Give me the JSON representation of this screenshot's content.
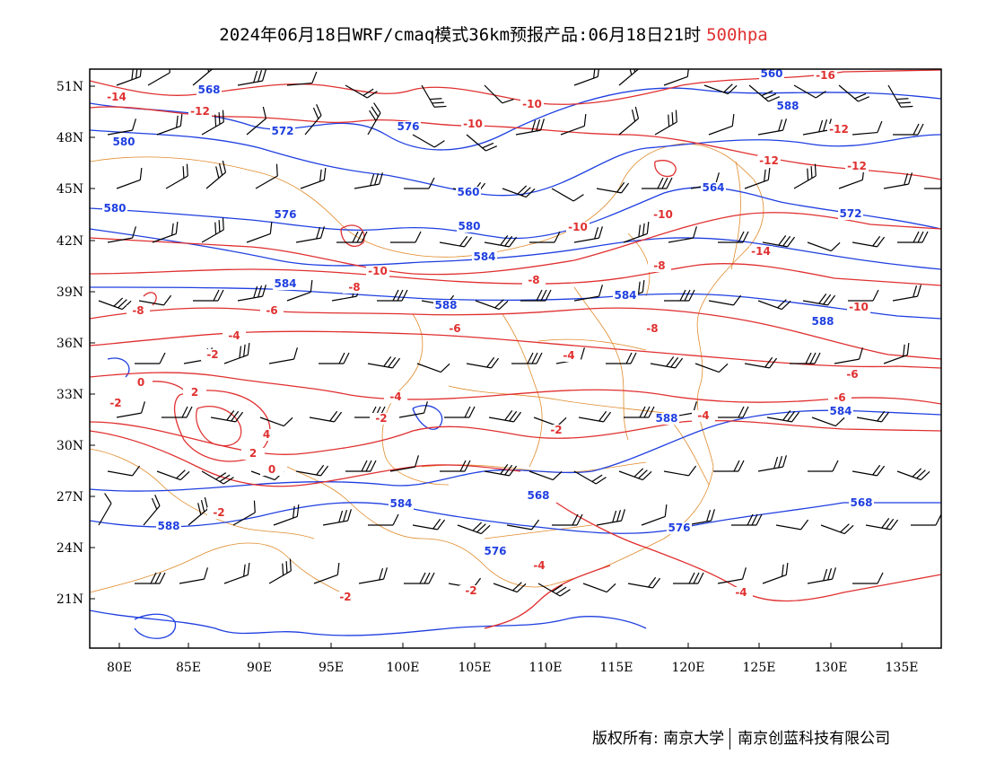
{
  "title": {
    "main": "2024年06月18日WRF/cmaq模式36km预报产品:06月18日21时",
    "level": "500hpa"
  },
  "footer": {
    "copyright": "版权所有: 南京大学",
    "company": "南京创蓝科技有限公司"
  },
  "colors": {
    "geopotential_contour": "#1f3fe0",
    "temperature_contour": "#e03030",
    "boundaries": "#e08a2a",
    "wind_barbs": "#000000"
  },
  "axes": {
    "lon_labels": [
      "80E",
      "85E",
      "90E",
      "95E",
      "100E",
      "105E",
      "110E",
      "115E",
      "120E",
      "125E",
      "130E",
      "135E"
    ],
    "lat_labels": [
      "51N",
      "48N",
      "45N",
      "42N",
      "39N",
      "36N",
      "33N",
      "30N",
      "27N",
      "24N",
      "21N"
    ]
  },
  "geopotential_labels": [
    "560",
    "568",
    "576",
    "572",
    "580",
    "588",
    "560",
    "564",
    "576",
    "572",
    "580",
    "580",
    "584",
    "584",
    "588",
    "584",
    "588",
    "588",
    "584",
    "584",
    "568",
    "588",
    "576",
    "568",
    "576"
  ],
  "temperature_labels": [
    "-14",
    "-12",
    "-10",
    "-10",
    "-10",
    "-10",
    "-8",
    "-8",
    "-8",
    "-6",
    "-6",
    "-4",
    "-4",
    "-4",
    "-2",
    "-2",
    "-2",
    "-2",
    "0",
    "2",
    "-2",
    "-4",
    "-6",
    "-8",
    "-10",
    "-12",
    "-12",
    "-16",
    "-14",
    "-12",
    "-10",
    "-8",
    "-6",
    "-4",
    "-2",
    "-4",
    "-2",
    "2",
    "4",
    "0"
  ]
}
